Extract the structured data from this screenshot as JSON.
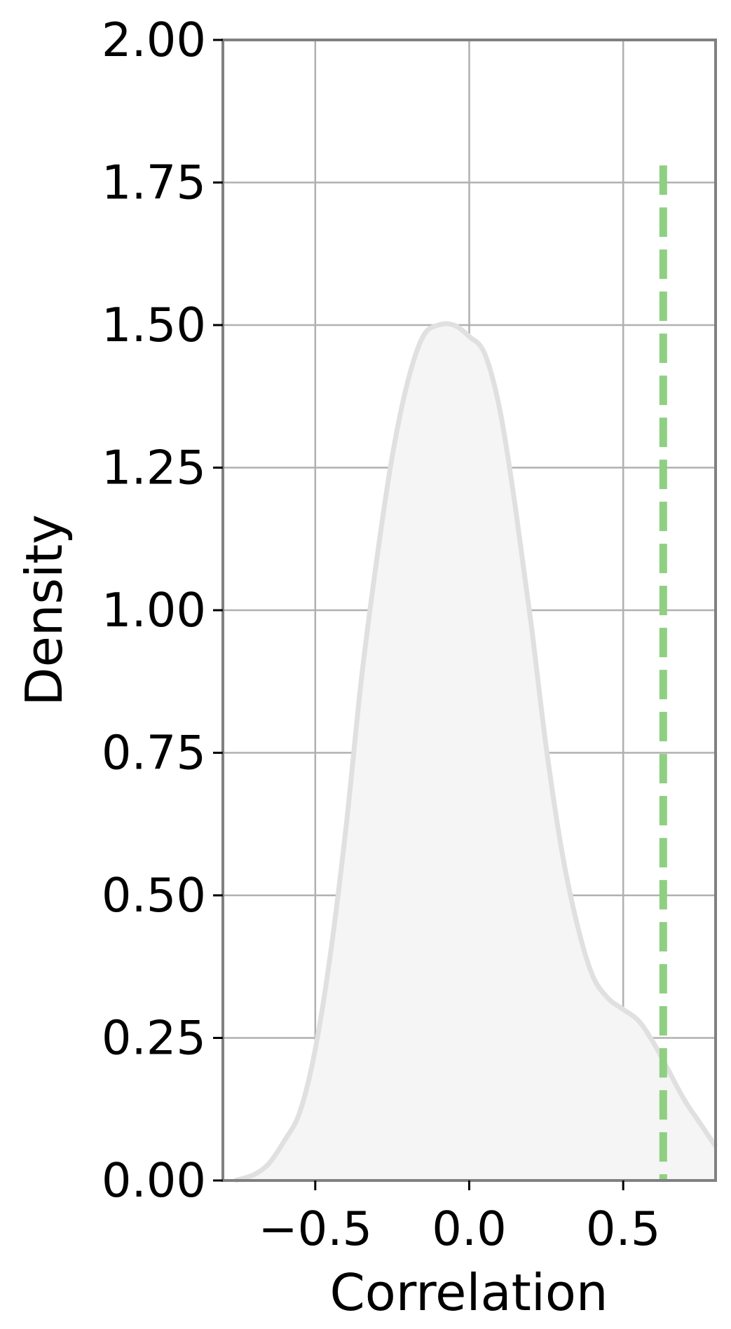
{
  "chart_data": {
    "type": "area",
    "xlabel": "Correlation",
    "ylabel": "Density",
    "xlim": [
      -0.8,
      0.8
    ],
    "ylim": [
      0,
      2.0
    ],
    "xticks": [
      -0.5,
      0.0,
      0.5
    ],
    "xtick_labels": [
      "−0.5",
      "0.0",
      "0.5"
    ],
    "yticks": [
      0.0,
      0.25,
      0.5,
      0.75,
      1.0,
      1.25,
      1.5,
      1.75,
      2.0
    ],
    "ytick_labels": [
      "0.00",
      "0.25",
      "0.50",
      "0.75",
      "1.00",
      "1.25",
      "1.50",
      "1.75",
      "2.00"
    ],
    "grid": true,
    "series": [
      {
        "x": [
          -0.76,
          -0.7,
          -0.65,
          -0.6,
          -0.55,
          -0.5,
          -0.45,
          -0.4,
          -0.35,
          -0.3,
          -0.25,
          -0.2,
          -0.15,
          -0.1,
          -0.05,
          0.0,
          0.05,
          0.1,
          0.15,
          0.2,
          0.25,
          0.3,
          0.35,
          0.4,
          0.45,
          0.5,
          0.55,
          0.6,
          0.65,
          0.7,
          0.75,
          0.8
        ],
        "y": [
          0.0,
          0.01,
          0.03,
          0.07,
          0.12,
          0.23,
          0.4,
          0.62,
          0.88,
          1.09,
          1.27,
          1.4,
          1.48,
          1.5,
          1.5,
          1.48,
          1.45,
          1.35,
          1.18,
          0.98,
          0.76,
          0.58,
          0.45,
          0.36,
          0.32,
          0.3,
          0.28,
          0.24,
          0.19,
          0.14,
          0.1,
          0.06
        ],
        "color": "#e0e0e0",
        "fill": "#f5f5f5"
      }
    ],
    "reference_line": {
      "x": 0.63,
      "y_top": 1.78,
      "style": "dashed",
      "color": "#8fcf82"
    }
  }
}
